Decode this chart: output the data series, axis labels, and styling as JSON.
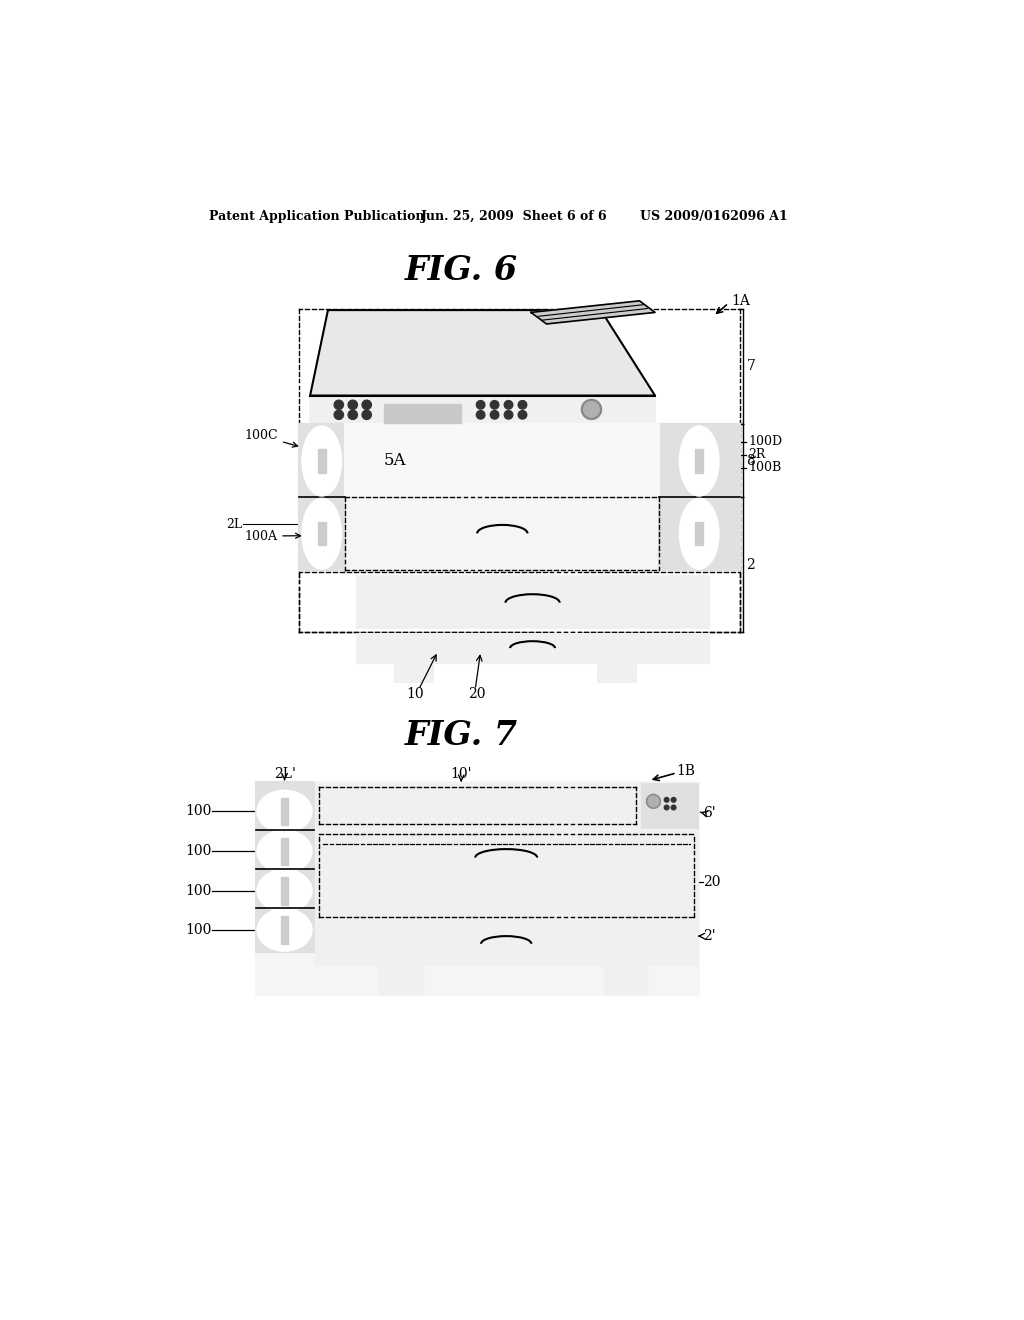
{
  "bg_color": "#ffffff",
  "header_left": "Patent Application Publication",
  "header_mid": "Jun. 25, 2009  Sheet 6 of 6",
  "header_right": "US 2009/0162096 A1",
  "fig6_title": "FIG. 6",
  "fig7_title": "FIG. 7",
  "line_color": "#000000"
}
